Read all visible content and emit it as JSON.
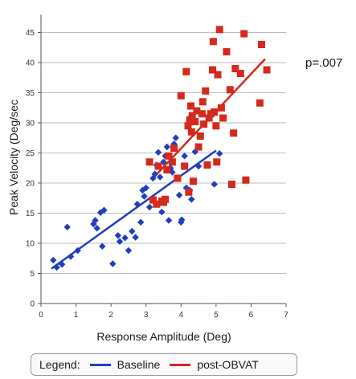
{
  "chart_data": {
    "type": "scatter",
    "title": "",
    "xlabel": "Response Amplitude (Deg)",
    "ylabel": "Peak Velocity (Deg/sec",
    "xlim": [
      0,
      7
    ],
    "ylim": [
      0,
      48
    ],
    "xticks": [
      0,
      1,
      2,
      3,
      4,
      5,
      6,
      7
    ],
    "yticks": [
      0,
      5,
      10,
      15,
      20,
      25,
      30,
      35,
      40,
      45
    ],
    "grid": "horizontal",
    "legend_position": "bottom",
    "annotation": "p=.007",
    "legend": {
      "title": "Legend:",
      "items": [
        "Baseline",
        "post-OBVAT"
      ]
    },
    "series": [
      {
        "name": "Baseline",
        "color": "#1f3fbf",
        "marker": "diamond",
        "points": [
          [
            0.35,
            7.2
          ],
          [
            0.45,
            6.0
          ],
          [
            0.6,
            6.5
          ],
          [
            0.75,
            12.7
          ],
          [
            0.85,
            7.8
          ],
          [
            1.05,
            8.8
          ],
          [
            1.5,
            13.2
          ],
          [
            1.55,
            13.8
          ],
          [
            1.6,
            12.5
          ],
          [
            1.7,
            15.1
          ],
          [
            1.75,
            9.5
          ],
          [
            1.8,
            15.5
          ],
          [
            2.05,
            6.6
          ],
          [
            2.2,
            11.3
          ],
          [
            2.25,
            10.3
          ],
          [
            2.4,
            10.9
          ],
          [
            2.5,
            8.8
          ],
          [
            2.6,
            12.0
          ],
          [
            2.7,
            11.0
          ],
          [
            2.75,
            16.5
          ],
          [
            2.85,
            13.5
          ],
          [
            2.9,
            18.8
          ],
          [
            2.95,
            17.8
          ],
          [
            3.0,
            19.2
          ],
          [
            3.1,
            16.0
          ],
          [
            3.2,
            20.8
          ],
          [
            3.25,
            21.5
          ],
          [
            3.3,
            23.0
          ],
          [
            3.35,
            25.1
          ],
          [
            3.4,
            21.0
          ],
          [
            3.45,
            15.2
          ],
          [
            3.5,
            23.5
          ],
          [
            3.55,
            24.5
          ],
          [
            3.6,
            26.0
          ],
          [
            3.65,
            13.8
          ],
          [
            3.7,
            22.5
          ],
          [
            3.75,
            21.8
          ],
          [
            3.8,
            26.5
          ],
          [
            3.85,
            27.5
          ],
          [
            3.95,
            18.0
          ],
          [
            4.0,
            13.5
          ],
          [
            4.02,
            13.9
          ],
          [
            4.1,
            24.5
          ],
          [
            4.15,
            19.2
          ],
          [
            4.25,
            18.8
          ],
          [
            4.3,
            17.3
          ],
          [
            4.4,
            25.2
          ],
          [
            4.5,
            22.8
          ],
          [
            4.95,
            19.8
          ],
          [
            5.1,
            24.9
          ]
        ],
        "fit": [
          [
            0.3,
            5.8
          ],
          [
            5.0,
            25.4
          ]
        ]
      },
      {
        "name": "post-OBVAT",
        "color": "#d42a1e",
        "marker": "square",
        "points": [
          [
            3.1,
            23.5
          ],
          [
            3.2,
            17.2
          ],
          [
            3.3,
            16.5
          ],
          [
            3.35,
            22.8
          ],
          [
            3.45,
            17.0
          ],
          [
            3.5,
            16.8
          ],
          [
            3.55,
            17.3
          ],
          [
            3.6,
            22.2
          ],
          [
            3.65,
            24.5
          ],
          [
            3.75,
            23.5
          ],
          [
            3.8,
            25.8
          ],
          [
            3.9,
            20.8
          ],
          [
            4.0,
            34.5
          ],
          [
            4.1,
            22.8
          ],
          [
            4.15,
            38.5
          ],
          [
            4.2,
            29.5
          ],
          [
            4.22,
            18.5
          ],
          [
            4.25,
            30.5
          ],
          [
            4.28,
            32.8
          ],
          [
            4.3,
            28.5
          ],
          [
            4.32,
            31.2
          ],
          [
            4.35,
            20.3
          ],
          [
            4.4,
            30.2
          ],
          [
            4.45,
            32.0
          ],
          [
            4.5,
            26.0
          ],
          [
            4.55,
            27.8
          ],
          [
            4.6,
            31.5
          ],
          [
            4.62,
            33.5
          ],
          [
            4.65,
            29.8
          ],
          [
            4.7,
            35.3
          ],
          [
            4.75,
            23.0
          ],
          [
            4.8,
            30.8
          ],
          [
            4.85,
            31.5
          ],
          [
            4.9,
            38.8
          ],
          [
            4.92,
            43.5
          ],
          [
            4.95,
            31.8
          ],
          [
            5.0,
            29.5
          ],
          [
            5.02,
            23.5
          ],
          [
            5.05,
            38.0
          ],
          [
            5.1,
            45.5
          ],
          [
            5.15,
            32.5
          ],
          [
            5.2,
            30.8
          ],
          [
            5.3,
            41.8
          ],
          [
            5.4,
            35.5
          ],
          [
            5.45,
            19.8
          ],
          [
            5.5,
            28.3
          ],
          [
            5.55,
            39.0
          ],
          [
            5.7,
            38.2
          ],
          [
            5.8,
            44.8
          ],
          [
            5.85,
            20.5
          ],
          [
            6.25,
            33.3
          ],
          [
            6.3,
            43.0
          ],
          [
            6.45,
            38.8
          ]
        ],
        "fit": [
          [
            3.2,
            20.8
          ],
          [
            6.4,
            40.6
          ]
        ]
      }
    ]
  }
}
